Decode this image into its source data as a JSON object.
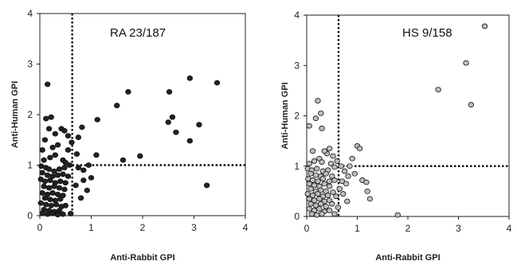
{
  "chart_data": [
    {
      "type": "scatter",
      "title": "RA 23/187",
      "xlabel": "Anti-Rabbit GPI",
      "ylabel": "Anti-Human GPI",
      "xlim": [
        0,
        4
      ],
      "ylim": [
        0,
        4
      ],
      "xticks": [
        "0",
        "1",
        "2",
        "3",
        "4"
      ],
      "yticks": [
        "0",
        "1",
        "2",
        "3",
        "4"
      ],
      "cutoff_x": 0.63,
      "cutoff_y": 1.0,
      "marker_color": "#222222",
      "points": [
        [
          0.15,
          2.6
        ],
        [
          0.12,
          1.92
        ],
        [
          0.22,
          1.95
        ],
        [
          0.18,
          1.72
        ],
        [
          0.3,
          1.62
        ],
        [
          0.42,
          1.72
        ],
        [
          0.48,
          1.68
        ],
        [
          0.55,
          1.58
        ],
        [
          0.62,
          1.45
        ],
        [
          0.75,
          1.55
        ],
        [
          0.82,
          1.75
        ],
        [
          0.72,
          1.22
        ],
        [
          0.55,
          1.3
        ],
        [
          0.35,
          1.4
        ],
        [
          0.25,
          1.35
        ],
        [
          0.1,
          1.5
        ],
        [
          0.05,
          1.3
        ],
        [
          0.08,
          1.1
        ],
        [
          0.2,
          1.15
        ],
        [
          0.3,
          1.2
        ],
        [
          0.45,
          1.1
        ],
        [
          0.5,
          1.05
        ],
        [
          0.58,
          1.0
        ],
        [
          0.03,
          0.98
        ],
        [
          0.12,
          0.95
        ],
        [
          0.18,
          0.92
        ],
        [
          0.28,
          0.88
        ],
        [
          0.38,
          0.92
        ],
        [
          0.48,
          0.95
        ],
        [
          0.05,
          0.85
        ],
        [
          0.15,
          0.8
        ],
        [
          0.25,
          0.78
        ],
        [
          0.35,
          0.8
        ],
        [
          0.45,
          0.82
        ],
        [
          0.55,
          0.78
        ],
        [
          0.02,
          0.72
        ],
        [
          0.1,
          0.68
        ],
        [
          0.2,
          0.7
        ],
        [
          0.3,
          0.65
        ],
        [
          0.4,
          0.68
        ],
        [
          0.5,
          0.65
        ],
        [
          0.08,
          0.58
        ],
        [
          0.18,
          0.55
        ],
        [
          0.28,
          0.58
        ],
        [
          0.38,
          0.55
        ],
        [
          0.48,
          0.52
        ],
        [
          0.05,
          0.45
        ],
        [
          0.15,
          0.42
        ],
        [
          0.25,
          0.45
        ],
        [
          0.35,
          0.42
        ],
        [
          0.45,
          0.4
        ],
        [
          0.1,
          0.35
        ],
        [
          0.2,
          0.32
        ],
        [
          0.3,
          0.3
        ],
        [
          0.4,
          0.33
        ],
        [
          0.02,
          0.25
        ],
        [
          0.12,
          0.22
        ],
        [
          0.22,
          0.2
        ],
        [
          0.32,
          0.22
        ],
        [
          0.42,
          0.18
        ],
        [
          0.5,
          0.2
        ],
        [
          0.08,
          0.12
        ],
        [
          0.18,
          0.1
        ],
        [
          0.28,
          0.08
        ],
        [
          0.38,
          0.1
        ],
        [
          0.05,
          0.05
        ],
        [
          0.15,
          0.03
        ],
        [
          0.25,
          0.05
        ],
        [
          0.35,
          0.02
        ],
        [
          0.45,
          0.03
        ],
        [
          0.6,
          0.04
        ],
        [
          0.75,
          0.95
        ],
        [
          0.85,
          0.9
        ],
        [
          0.95,
          1.0
        ],
        [
          0.7,
          0.6
        ],
        [
          0.85,
          0.7
        ],
        [
          1.0,
          0.75
        ],
        [
          0.8,
          0.35
        ],
        [
          0.92,
          0.5
        ],
        [
          1.1,
          1.2
        ],
        [
          1.12,
          1.9
        ],
        [
          1.5,
          2.18
        ],
        [
          1.72,
          2.45
        ],
        [
          1.62,
          1.1
        ],
        [
          1.95,
          1.18
        ],
        [
          2.52,
          2.45
        ],
        [
          2.5,
          1.85
        ],
        [
          2.58,
          1.95
        ],
        [
          2.65,
          1.65
        ],
        [
          2.92,
          2.72
        ],
        [
          2.92,
          1.48
        ],
        [
          3.1,
          1.8
        ],
        [
          3.25,
          0.6
        ],
        [
          3.45,
          2.63
        ]
      ]
    },
    {
      "type": "scatter",
      "title": "HS 9/158",
      "xlabel": "Anti-Rabbit GPI",
      "ylabel": "Anti-Human GPI",
      "xlim": [
        0,
        4
      ],
      "ylim": [
        0,
        4
      ],
      "xticks": [
        "0",
        "1",
        "2",
        "3",
        "4"
      ],
      "yticks": [
        "0",
        "1",
        "2",
        "3",
        "4"
      ],
      "cutoff_x": 0.63,
      "cutoff_y": 1.0,
      "marker_color": "#bdbdbd",
      "points": [
        [
          0.05,
          1.8
        ],
        [
          0.22,
          2.3
        ],
        [
          0.28,
          2.05
        ],
        [
          0.18,
          1.95
        ],
        [
          0.3,
          1.75
        ],
        [
          0.45,
          1.35
        ],
        [
          0.4,
          1.25
        ],
        [
          0.52,
          1.2
        ],
        [
          0.35,
          1.3
        ],
        [
          0.25,
          1.15
        ],
        [
          0.12,
          1.3
        ],
        [
          0.6,
          1.1
        ],
        [
          0.05,
          1.05
        ],
        [
          0.15,
          1.1
        ],
        [
          0.3,
          1.08
        ],
        [
          0.48,
          1.05
        ],
        [
          0.55,
          0.98
        ],
        [
          0.02,
          0.95
        ],
        [
          0.1,
          0.92
        ],
        [
          0.2,
          0.95
        ],
        [
          0.32,
          0.9
        ],
        [
          0.42,
          0.92
        ],
        [
          0.08,
          0.85
        ],
        [
          0.18,
          0.82
        ],
        [
          0.28,
          0.8
        ],
        [
          0.38,
          0.85
        ],
        [
          0.5,
          0.8
        ],
        [
          0.03,
          0.75
        ],
        [
          0.12,
          0.72
        ],
        [
          0.22,
          0.7
        ],
        [
          0.32,
          0.75
        ],
        [
          0.45,
          0.7
        ],
        [
          0.55,
          0.72
        ],
        [
          0.05,
          0.65
        ],
        [
          0.15,
          0.62
        ],
        [
          0.25,
          0.6
        ],
        [
          0.35,
          0.65
        ],
        [
          0.45,
          0.6
        ],
        [
          0.08,
          0.55
        ],
        [
          0.18,
          0.5
        ],
        [
          0.28,
          0.52
        ],
        [
          0.38,
          0.5
        ],
        [
          0.02,
          0.45
        ],
        [
          0.12,
          0.42
        ],
        [
          0.22,
          0.45
        ],
        [
          0.32,
          0.4
        ],
        [
          0.42,
          0.42
        ],
        [
          0.52,
          0.48
        ],
        [
          0.05,
          0.35
        ],
        [
          0.15,
          0.32
        ],
        [
          0.25,
          0.35
        ],
        [
          0.35,
          0.3
        ],
        [
          0.45,
          0.32
        ],
        [
          0.08,
          0.25
        ],
        [
          0.18,
          0.22
        ],
        [
          0.28,
          0.25
        ],
        [
          0.38,
          0.2
        ],
        [
          0.5,
          0.25
        ],
        [
          0.05,
          0.15
        ],
        [
          0.15,
          0.12
        ],
        [
          0.25,
          0.15
        ],
        [
          0.35,
          0.1
        ],
        [
          0.45,
          0.12
        ],
        [
          0.1,
          0.05
        ],
        [
          0.2,
          0.03
        ],
        [
          0.3,
          0.05
        ],
        [
          0.55,
          0.05
        ],
        [
          0.62,
          0.18
        ],
        [
          0.58,
          0.4
        ],
        [
          0.65,
          0.55
        ],
        [
          0.7,
          0.7
        ],
        [
          0.78,
          0.65
        ],
        [
          0.82,
          0.8
        ],
        [
          0.75,
          0.9
        ],
        [
          0.68,
          1.0
        ],
        [
          0.85,
          1.0
        ],
        [
          0.72,
          0.45
        ],
        [
          0.8,
          0.3
        ],
        [
          0.9,
          1.15
        ],
        [
          1.0,
          1.4
        ],
        [
          1.05,
          1.35
        ],
        [
          0.95,
          0.85
        ],
        [
          1.1,
          0.72
        ],
        [
          1.18,
          0.68
        ],
        [
          1.2,
          0.5
        ],
        [
          1.25,
          0.35
        ],
        [
          1.8,
          0.03
        ],
        [
          2.6,
          2.52
        ],
        [
          3.15,
          3.05
        ],
        [
          3.25,
          2.22
        ],
        [
          3.52,
          3.78
        ]
      ]
    }
  ]
}
